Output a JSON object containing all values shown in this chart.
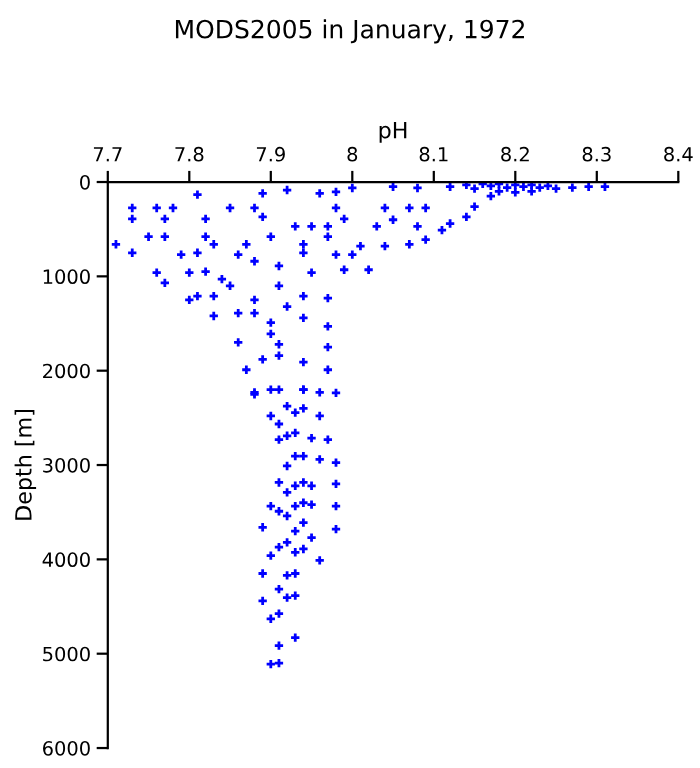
{
  "chart_data": {
    "type": "scatter",
    "title": "MODS2005 in January, 1972",
    "xlabel": "pH",
    "ylabel": "Depth [m]",
    "xlim": [
      7.7,
      8.4
    ],
    "xticks": [
      7.7,
      7.8,
      7.9,
      8,
      8.1,
      8.2,
      8.3,
      8.4
    ],
    "ylim": [
      6000,
      0
    ],
    "yticks": [
      0,
      1000,
      2000,
      3000,
      4000,
      5000,
      6000
    ],
    "grid": false,
    "marker": "cross",
    "series": [
      {
        "color": "#0000ff",
        "x": [
          8.12,
          8.14,
          8.15,
          8.16,
          8.17,
          8.18,
          8.19,
          8.2,
          8.21,
          8.22,
          8.23,
          8.24,
          8.25,
          8.27,
          8.29,
          8.31,
          8.18,
          8.2,
          8.22,
          8.17,
          7.81,
          7.89,
          7.92,
          7.96,
          7.98,
          8.0,
          8.05,
          8.08,
          7.73,
          7.76,
          7.78,
          7.85,
          7.88,
          7.98,
          8.04,
          8.07,
          8.09,
          7.73,
          7.77,
          7.82,
          7.89,
          7.93,
          7.95,
          7.97,
          7.99,
          8.03,
          8.05,
          8.08,
          8.12,
          8.14,
          8.15,
          7.71,
          7.75,
          7.77,
          7.82,
          7.83,
          7.87,
          7.9,
          7.94,
          7.97,
          8.01,
          8.04,
          8.07,
          8.09,
          8.11,
          7.73,
          7.79,
          7.81,
          7.86,
          7.94,
          7.98,
          8.0,
          7.76,
          7.8,
          7.82,
          7.84,
          7.88,
          7.91,
          7.95,
          7.99,
          8.02,
          7.77,
          7.8,
          7.81,
          7.83,
          7.85,
          7.88,
          7.91,
          7.94,
          7.97,
          7.83,
          7.86,
          7.88,
          7.9,
          7.92,
          7.94,
          7.97,
          7.86,
          7.91,
          7.9,
          7.97,
          7.87,
          7.89,
          7.91,
          7.94,
          7.97,
          7.88,
          7.91,
          7.94,
          7.96,
          7.9,
          7.94,
          7.98,
          7.88,
          7.92,
          7.94,
          7.96,
          7.9,
          7.91,
          7.93,
          7.92,
          7.91,
          7.95,
          7.97,
          7.93,
          7.94,
          7.92,
          7.98,
          7.96,
          7.93,
          7.91,
          7.93,
          7.95,
          7.98,
          7.92,
          7.94,
          7.9,
          7.91,
          7.93,
          7.94,
          7.98,
          7.95,
          7.89,
          7.92,
          7.94,
          7.93,
          7.98,
          7.95,
          7.91,
          7.92,
          7.93,
          7.94,
          7.96,
          7.9,
          7.89,
          7.92,
          7.93,
          7.91,
          7.92,
          7.93,
          7.89,
          7.91,
          7.9,
          7.93,
          7.91,
          7.9,
          7.91
        ],
        "values": [
          50,
          30,
          70,
          20,
          40,
          20,
          60,
          30,
          50,
          30,
          60,
          40,
          70,
          60,
          50,
          50,
          100,
          110,
          100,
          150,
          134,
          120,
          85,
          120,
          105,
          63,
          50,
          63,
          275,
          275,
          275,
          275,
          275,
          275,
          275,
          275,
          275,
          390,
          390,
          390,
          370,
          470,
          470,
          470,
          390,
          470,
          400,
          470,
          440,
          370,
          260,
          660,
          580,
          580,
          580,
          660,
          660,
          580,
          660,
          580,
          680,
          680,
          660,
          610,
          510,
          750,
          770,
          750,
          770,
          750,
          770,
          770,
          960,
          960,
          950,
          1030,
          840,
          890,
          960,
          930,
          930,
          1070,
          1250,
          1210,
          1210,
          1100,
          1250,
          1100,
          1210,
          1230,
          1420,
          1390,
          1390,
          1490,
          1320,
          1440,
          1530,
          1700,
          1720,
          1610,
          1750,
          1990,
          1880,
          1840,
          1910,
          1990,
          2230,
          2200,
          2200,
          2230,
          2200,
          2200,
          2235,
          2250,
          2375,
          2400,
          2480,
          2480,
          2565,
          2445,
          2690,
          2730,
          2715,
          2730,
          2660,
          2905,
          3010,
          2975,
          2940,
          2905,
          3185,
          3220,
          3220,
          3200,
          3290,
          3185,
          3435,
          3490,
          3435,
          3400,
          3435,
          3420,
          3660,
          3540,
          3610,
          3700,
          3680,
          3770,
          3870,
          3820,
          3925,
          3890,
          4010,
          3960,
          4150,
          4170,
          4150,
          4315,
          4405,
          4385,
          4440,
          4575,
          4630,
          4830,
          4915,
          5110,
          5100
        ]
      }
    ]
  }
}
